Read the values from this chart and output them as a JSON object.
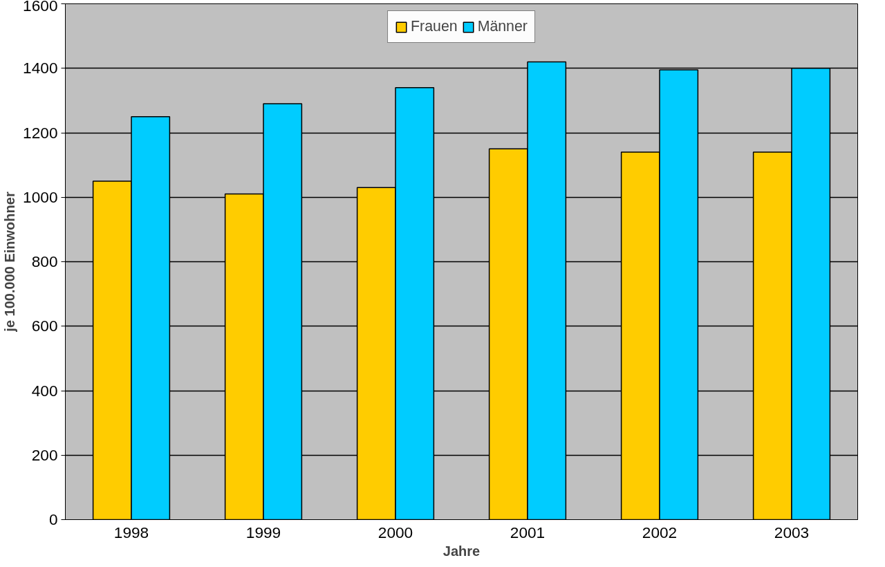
{
  "chart_data": {
    "type": "bar",
    "xlabel": "Jahre",
    "ylabel": "je 100.000 Einwohner",
    "categories": [
      "1998",
      "1999",
      "2000",
      "2001",
      "2002",
      "2003"
    ],
    "series": [
      {
        "name": "Frauen",
        "color": "#ffcc00",
        "values": [
          1050,
          1010,
          1030,
          1150,
          1140,
          1140
        ]
      },
      {
        "name": "Männer",
        "color": "#00ccff",
        "values": [
          1250,
          1290,
          1340,
          1420,
          1395,
          1400
        ]
      }
    ],
    "ylim": [
      0,
      1600
    ],
    "yticks": [
      0,
      200,
      400,
      600,
      800,
      1000,
      1200,
      1400,
      1600
    ],
    "grid": "y",
    "legend": "top"
  }
}
